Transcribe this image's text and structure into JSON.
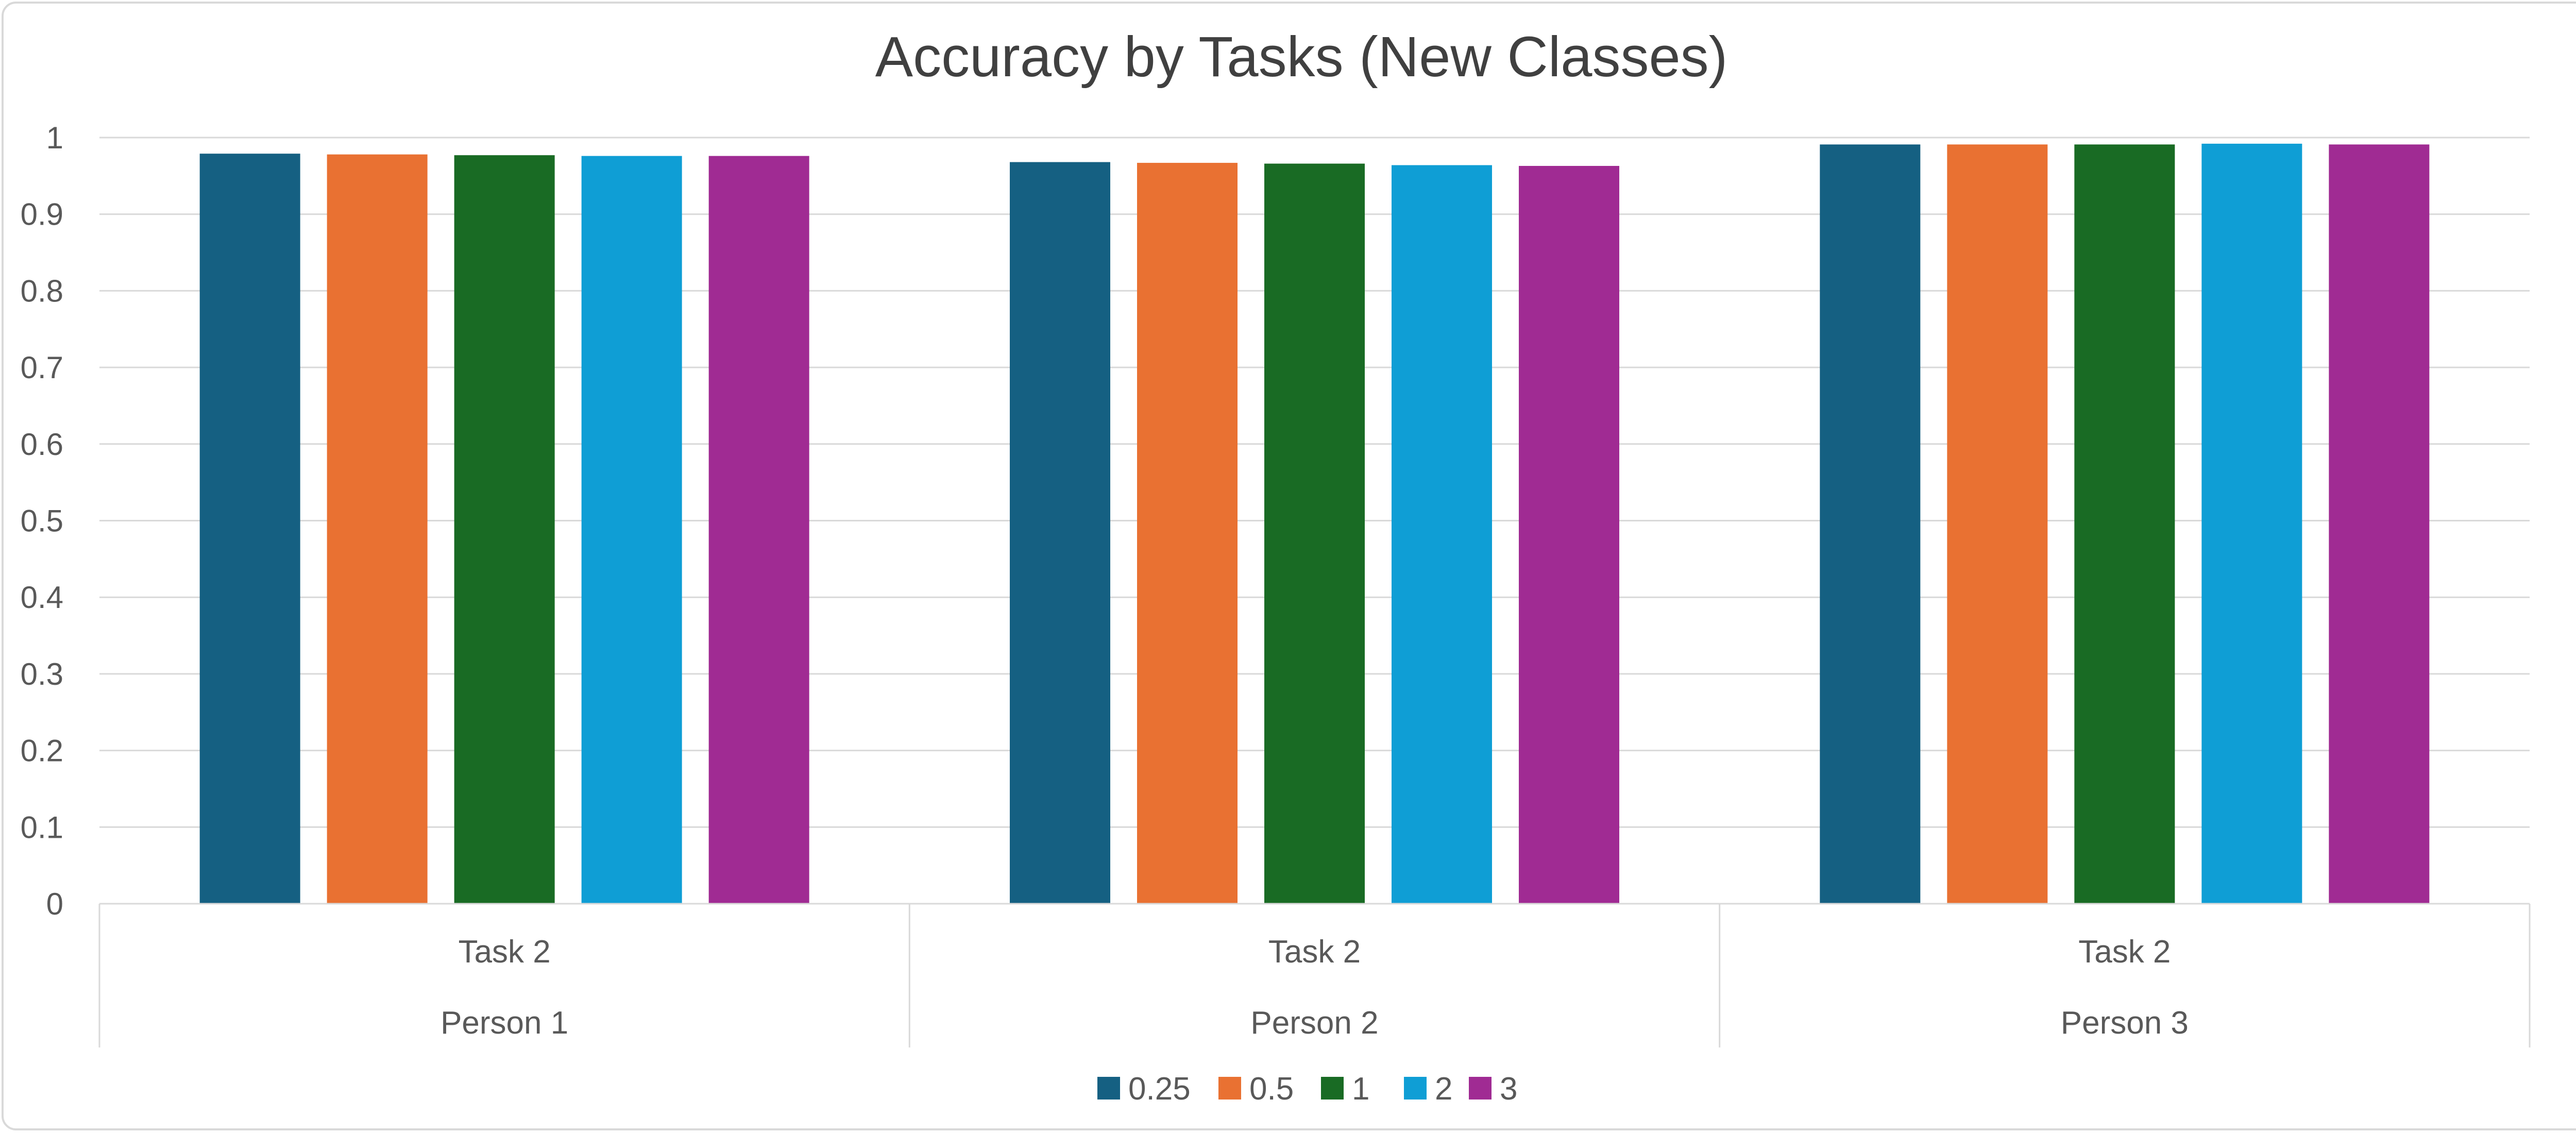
{
  "chart_data": {
    "type": "bar",
    "title": "Accuracy by Tasks (New Classes)",
    "categories": [
      {
        "task": "Task 2",
        "person": "Person 1"
      },
      {
        "task": "Task 2",
        "person": "Person 2"
      },
      {
        "task": "Task 2",
        "person": "Person 3"
      }
    ],
    "series": [
      {
        "name": "0.25",
        "color": "#156082",
        "values": [
          0.979,
          0.968,
          0.991
        ]
      },
      {
        "name": "0.5",
        "color": "#E97132",
        "values": [
          0.978,
          0.967,
          0.991
        ]
      },
      {
        "name": "1",
        "color": "#196B24",
        "values": [
          0.977,
          0.966,
          0.991
        ]
      },
      {
        "name": "2",
        "color": "#0F9ED5",
        "values": [
          0.976,
          0.964,
          0.992
        ]
      },
      {
        "name": "3",
        "color": "#A02B93",
        "values": [
          0.976,
          0.963,
          0.991
        ]
      }
    ],
    "ylim": [
      0,
      1
    ],
    "yticks": [
      "0",
      "0.1",
      "0.2",
      "0.3",
      "0.4",
      "0.5",
      "0.6",
      "0.7",
      "0.8",
      "0.9",
      "1"
    ],
    "grid": true,
    "legend_position": "bottom"
  }
}
